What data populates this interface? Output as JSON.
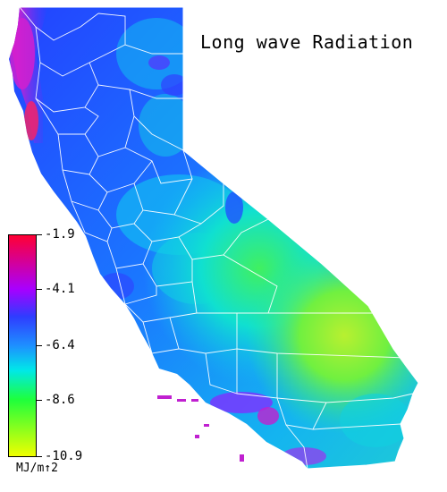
{
  "title": "Long wave Radiation",
  "legend": {
    "ticks": [
      {
        "label": "-1.9",
        "value": -1.9
      },
      {
        "label": "-4.1",
        "value": -4.1
      },
      {
        "label": "-6.4",
        "value": -6.4
      },
      {
        "label": "-8.6",
        "value": -8.6
      },
      {
        "label": "-10.9",
        "value": -10.9
      }
    ],
    "units": "MJ/m↑2",
    "min": -10.9,
    "max": -1.9,
    "color_stops": [
      {
        "value": -1.9,
        "color": "#ff0033"
      },
      {
        "value": -4.1,
        "color": "#a800ff"
      },
      {
        "value": -5.2,
        "color": "#2f3cff"
      },
      {
        "value": -6.4,
        "color": "#1e90ff"
      },
      {
        "value": -7.4,
        "color": "#00e8e8"
      },
      {
        "value": -8.6,
        "color": "#1eff3c"
      },
      {
        "value": -10.9,
        "color": "#f0ff00"
      }
    ]
  },
  "colors": {
    "coast_magenta": "#d020d0",
    "north_blue": "#2a40ff",
    "central_blue": "#1e78ff",
    "valley_cyan": "#10c8f0",
    "sierra_cyan": "#00e0e0",
    "desert_green": "#50f040",
    "desert_yellowgreen": "#a0f030",
    "county_lines": "#ffffff"
  }
}
